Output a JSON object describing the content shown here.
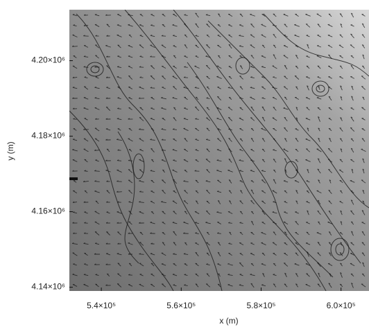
{
  "chart_data": {
    "type": "contour",
    "xlabel": "x (m)",
    "ylabel": "y (m)",
    "xlim": [
      532000,
      607000
    ],
    "ylim": [
      4139000,
      4213500
    ],
    "xticks": [
      {
        "value": 540000,
        "label": "5.4×10⁵"
      },
      {
        "value": 560000,
        "label": "5.6×10⁵"
      },
      {
        "value": 580000,
        "label": "5.8×10⁵"
      },
      {
        "value": 600000,
        "label": "6.0×10⁵"
      }
    ],
    "yticks": [
      {
        "value": 4140000,
        "label": "4.14×10⁶"
      },
      {
        "value": 4160000,
        "label": "4.16×10⁶"
      },
      {
        "value": 4180000,
        "label": "4.18×10⁶"
      },
      {
        "value": 4200000,
        "label": "4.20×10⁶"
      }
    ]
  }
}
